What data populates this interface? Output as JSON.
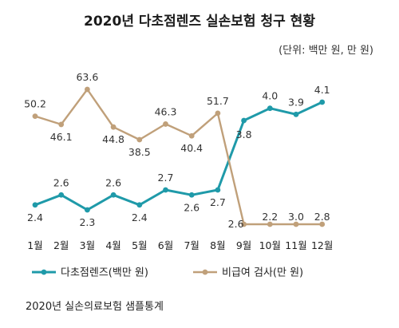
{
  "title": "2020년 다초점렌즈 실손보험 청구 현황",
  "unit_note": "(단위: 백만 원, 만 원)",
  "source": "2020년 실손의료보험 샘플통계",
  "chart_data": {
    "type": "line",
    "categories": [
      "1월",
      "2월",
      "3월",
      "4월",
      "5월",
      "6월",
      "7월",
      "8월",
      "9월",
      "10월",
      "11월",
      "12월"
    ],
    "series": [
      {
        "name": "다초점렌즈(백만 원)",
        "color": "#1f9aa9",
        "values": [
          2.4,
          2.6,
          2.3,
          2.6,
          2.4,
          2.7,
          2.6,
          2.7,
          3.8,
          4.0,
          3.9,
          4.1
        ]
      },
      {
        "name": "비급여 검사(만 원)",
        "color": "#c0a07a",
        "values": [
          50.2,
          46.1,
          63.6,
          44.8,
          38.5,
          46.3,
          40.4,
          51.7,
          2.6,
          2.2,
          3.0,
          2.8
        ]
      }
    ]
  }
}
